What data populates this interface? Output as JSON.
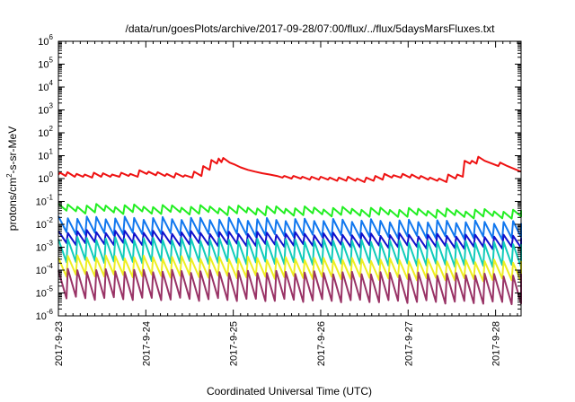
{
  "chart_data": {
    "type": "line",
    "title": "/data/run/goesPlots/archive/2017-09-28/07:00/flux/../flux/5daysMarsFluxes.txt",
    "xlabel": "Coordinated Universal Time (UTC)",
    "ylabel": {
      "prefix": "protons/cm",
      "sup": "2",
      "suffix": "-s-sr-MeV"
    },
    "x_ticks": [
      "2017-9-23",
      "2017-9-24",
      "2017-9-25",
      "2017-9-26",
      "2017-9-27",
      "2017-9-28"
    ],
    "y_scale": "log",
    "ylim": [
      1e-06,
      1000000.0
    ],
    "y_ticks": [
      {
        "base": "10",
        "exp": "-6"
      },
      {
        "base": "10",
        "exp": "-5"
      },
      {
        "base": "10",
        "exp": "-4"
      },
      {
        "base": "10",
        "exp": "-3"
      },
      {
        "base": "10",
        "exp": "-2"
      },
      {
        "base": "10",
        "exp": "-1"
      },
      {
        "base": "10",
        "exp": "0"
      },
      {
        "base": "10",
        "exp": "1"
      },
      {
        "base": "10",
        "exp": "2"
      },
      {
        "base": "10",
        "exp": "3"
      },
      {
        "base": "10",
        "exp": "4"
      },
      {
        "base": "10",
        "exp": "5"
      },
      {
        "base": "10",
        "exp": "6"
      }
    ],
    "xlim": [
      "2017-09-23 00:00",
      "2017-09-28 07:00"
    ],
    "grid": false,
    "legend": "none",
    "series": [
      {
        "color": "#ee1111",
        "points": [
          [
            "2017-09-23 00:00",
            1.5
          ],
          [
            "2017-09-23 00:30",
            1.8
          ],
          [
            "2017-09-23 02:00",
            1.3
          ],
          [
            "2017-09-23 02:30",
            1.9
          ],
          [
            "2017-09-23 04:30",
            1.2
          ],
          [
            "2017-09-23 05:00",
            1.6
          ],
          [
            "2017-09-23 06:45",
            1.2
          ],
          [
            "2017-09-23 07:15",
            1.5
          ],
          [
            "2017-09-23 09:15",
            1.1
          ],
          [
            "2017-09-23 09:45",
            1.8
          ],
          [
            "2017-09-23 11:45",
            1.2
          ],
          [
            "2017-09-23 12:15",
            1.7
          ],
          [
            "2017-09-23 14:15",
            1.2
          ],
          [
            "2017-09-23 14:45",
            1.5
          ],
          [
            "2017-09-23 16:45",
            1.2
          ],
          [
            "2017-09-23 17:15",
            1.8
          ],
          [
            "2017-09-23 19:15",
            1.3
          ],
          [
            "2017-09-23 19:45",
            1.6
          ],
          [
            "2017-09-23 21:45",
            1.2
          ],
          [
            "2017-09-23 22:15",
            2.3
          ],
          [
            "2017-09-24 00:15",
            1.6
          ],
          [
            "2017-09-24 00:45",
            2.0
          ],
          [
            "2017-09-24 02:45",
            1.4
          ],
          [
            "2017-09-24 03:15",
            1.9
          ],
          [
            "2017-09-24 05:15",
            1.3
          ],
          [
            "2017-09-24 05:45",
            1.6
          ],
          [
            "2017-09-24 07:45",
            1.1
          ],
          [
            "2017-09-24 08:15",
            1.7
          ],
          [
            "2017-09-24 10:15",
            1.2
          ],
          [
            "2017-09-24 10:45",
            1.4
          ],
          [
            "2017-09-24 12:45",
            1.1
          ],
          [
            "2017-09-24 13:15",
            2.0
          ],
          [
            "2017-09-24 15:15",
            1.3
          ],
          [
            "2017-09-24 15:45",
            3.5
          ],
          [
            "2017-09-24 17:30",
            2.4
          ],
          [
            "2017-09-24 18:00",
            6.5
          ],
          [
            "2017-09-24 19:30",
            4.5
          ],
          [
            "2017-09-24 20:00",
            7.5
          ],
          [
            "2017-09-24 20:45",
            5.2
          ],
          [
            "2017-09-24 21:15",
            8.0
          ],
          [
            "2017-09-24 23:00",
            5.0
          ],
          [
            "2017-09-25 00:30",
            4.0
          ],
          [
            "2017-09-25 02:00",
            3.1
          ],
          [
            "2017-09-25 04:00",
            2.4
          ],
          [
            "2017-09-25 06:00",
            2.0
          ],
          [
            "2017-09-25 08:00",
            1.7
          ],
          [
            "2017-09-25 10:00",
            1.5
          ],
          [
            "2017-09-25 12:00",
            1.3
          ],
          [
            "2017-09-25 13:30",
            1.1
          ],
          [
            "2017-09-25 14:00",
            1.3
          ],
          [
            "2017-09-25 16:00",
            1.0
          ],
          [
            "2017-09-25 16:30",
            1.3
          ],
          [
            "2017-09-25 18:30",
            1.0
          ],
          [
            "2017-09-25 19:00",
            1.2
          ],
          [
            "2017-09-25 21:00",
            0.9
          ],
          [
            "2017-09-25 21:30",
            1.2
          ],
          [
            "2017-09-25 23:30",
            0.9
          ],
          [
            "2017-09-26 00:00",
            1.2
          ],
          [
            "2017-09-26 02:00",
            0.9
          ],
          [
            "2017-09-26 02:30",
            1.1
          ],
          [
            "2017-09-26 04:30",
            0.8
          ],
          [
            "2017-09-26 05:00",
            1.1
          ],
          [
            "2017-09-26 07:00",
            0.8
          ],
          [
            "2017-09-26 07:30",
            1.2
          ],
          [
            "2017-09-26 09:30",
            0.8
          ],
          [
            "2017-09-26 10:00",
            1.0
          ],
          [
            "2017-09-26 12:00",
            0.7
          ],
          [
            "2017-09-26 12:30",
            1.1
          ],
          [
            "2017-09-26 14:30",
            0.8
          ],
          [
            "2017-09-26 15:00",
            1.3
          ],
          [
            "2017-09-26 17:00",
            0.9
          ],
          [
            "2017-09-26 17:30",
            1.6
          ],
          [
            "2017-09-26 19:30",
            1.1
          ],
          [
            "2017-09-26 20:00",
            1.4
          ],
          [
            "2017-09-26 22:00",
            1.1
          ],
          [
            "2017-09-26 22:30",
            1.6
          ],
          [
            "2017-09-27 00:30",
            1.1
          ],
          [
            "2017-09-27 01:00",
            1.5
          ],
          [
            "2017-09-27 03:00",
            1.0
          ],
          [
            "2017-09-27 03:30",
            1.3
          ],
          [
            "2017-09-27 05:30",
            0.9
          ],
          [
            "2017-09-27 06:00",
            1.1
          ],
          [
            "2017-09-27 08:00",
            0.8
          ],
          [
            "2017-09-27 08:30",
            1.0
          ],
          [
            "2017-09-27 10:30",
            0.7
          ],
          [
            "2017-09-27 11:00",
            1.5
          ],
          [
            "2017-09-27 13:00",
            1.0
          ],
          [
            "2017-09-27 13:30",
            1.5
          ],
          [
            "2017-09-27 15:00",
            1.2
          ],
          [
            "2017-09-27 15:30",
            6.0
          ],
          [
            "2017-09-27 17:00",
            4.5
          ],
          [
            "2017-09-27 17:30",
            6.0
          ],
          [
            "2017-09-27 18:45",
            4.5
          ],
          [
            "2017-09-27 19:15",
            9.0
          ],
          [
            "2017-09-27 21:00",
            6.0
          ],
          [
            "2017-09-27 23:00",
            4.5
          ],
          [
            "2017-09-28 00:45",
            3.5
          ],
          [
            "2017-09-28 01:15",
            5.0
          ],
          [
            "2017-09-28 03:15",
            3.5
          ],
          [
            "2017-09-28 05:15",
            2.6
          ],
          [
            "2017-09-28 07:00",
            2.0
          ]
        ]
      },
      {
        "color": "#22ee22",
        "sawtooth": {
          "period_hours": 2.6,
          "low": 0.035,
          "high": 0.07,
          "trend": [
            [
              0,
              1.0
            ],
            [
              127,
              0.55
            ]
          ]
        }
      },
      {
        "color": "#1177ee",
        "sawtooth": {
          "period_hours": 2.6,
          "low": 0.004,
          "high": 0.02,
          "trend": [
            [
              0,
              1.0
            ],
            [
              127,
              0.6
            ]
          ]
        }
      },
      {
        "color": "#1111cc",
        "sawtooth": {
          "period_hours": 2.6,
          "low": 0.0015,
          "high": 0.005,
          "trend": [
            [
              0,
              1.0
            ],
            [
              127,
              0.6
            ]
          ]
        }
      },
      {
        "color": "#11ccbb",
        "sawtooth": {
          "period_hours": 2.6,
          "low": 0.00025,
          "high": 0.0025,
          "trend": [
            [
              0,
              1.0
            ],
            [
              127,
              0.6
            ]
          ]
        }
      },
      {
        "color": "#eeee22",
        "sawtooth": {
          "period_hours": 2.6,
          "low": 6e-05,
          "high": 0.0004,
          "trend": [
            [
              0,
              1.0
            ],
            [
              127,
              0.6
            ]
          ]
        }
      },
      {
        "color": "#993366",
        "sawtooth": {
          "period_hours": 2.6,
          "low": 6e-06,
          "high": 0.0001,
          "trend": [
            [
              0,
              1.0
            ],
            [
              127,
              0.6
            ]
          ]
        }
      }
    ]
  }
}
